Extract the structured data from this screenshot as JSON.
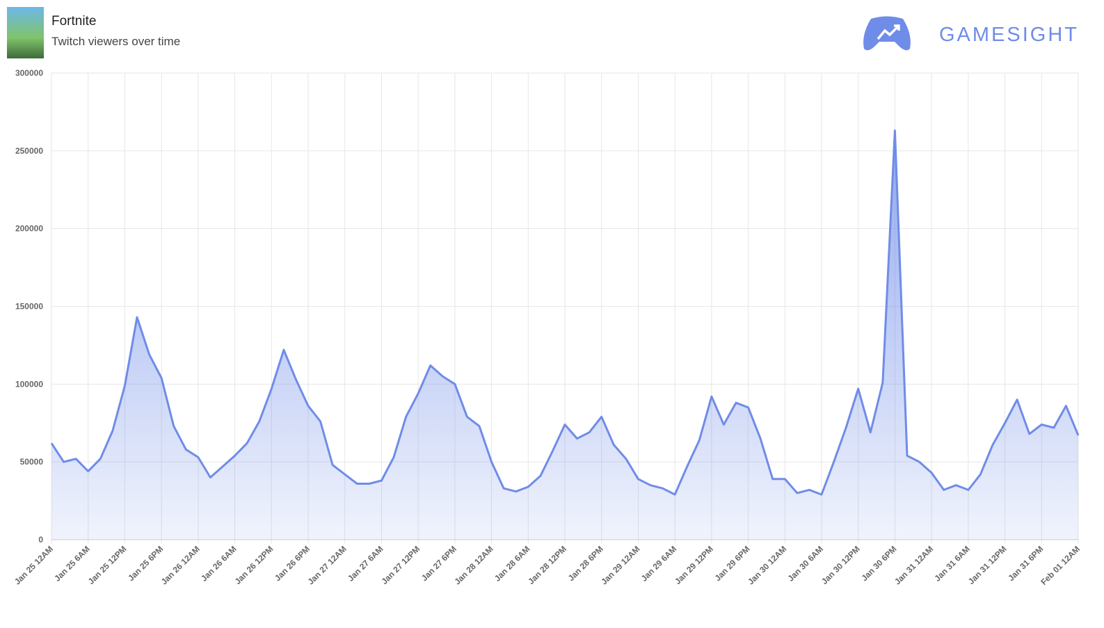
{
  "chart_data": {
    "type": "area",
    "title": "Fortnite",
    "subtitle": "Twitch viewers over time",
    "brand": "GAMESIGHT",
    "color": "#6f8ce8",
    "grid": true,
    "x": [
      "Jan 25 12AM",
      "Jan 25 2AM",
      "Jan 25 4AM",
      "Jan 25 6AM",
      "Jan 25 8AM",
      "Jan 25 10AM",
      "Jan 25 12PM",
      "Jan 25 2PM",
      "Jan 25 4PM",
      "Jan 25 6PM",
      "Jan 25 8PM",
      "Jan 25 10PM",
      "Jan 26 12AM",
      "Jan 26 2AM",
      "Jan 26 4AM",
      "Jan 26 6AM",
      "Jan 26 8AM",
      "Jan 26 10AM",
      "Jan 26 12PM",
      "Jan 26 2PM",
      "Jan 26 4PM",
      "Jan 26 6PM",
      "Jan 26 8PM",
      "Jan 26 10PM",
      "Jan 27 12AM",
      "Jan 27 2AM",
      "Jan 27 4AM",
      "Jan 27 6AM",
      "Jan 27 8AM",
      "Jan 27 10AM",
      "Jan 27 12PM",
      "Jan 27 2PM",
      "Jan 27 4PM",
      "Jan 27 6PM",
      "Jan 27 8PM",
      "Jan 27 10PM",
      "Jan 28 12AM",
      "Jan 28 2AM",
      "Jan 28 4AM",
      "Jan 28 6AM",
      "Jan 28 8AM",
      "Jan 28 10AM",
      "Jan 28 12PM",
      "Jan 28 2PM",
      "Jan 28 4PM",
      "Jan 28 6PM",
      "Jan 28 8PM",
      "Jan 28 10PM",
      "Jan 29 12AM",
      "Jan 29 2AM",
      "Jan 29 4AM",
      "Jan 29 6AM",
      "Jan 29 8AM",
      "Jan 29 10AM",
      "Jan 29 12PM",
      "Jan 29 2PM",
      "Jan 29 4PM",
      "Jan 29 6PM",
      "Jan 29 8PM",
      "Jan 29 10PM",
      "Jan 30 12AM",
      "Jan 30 2AM",
      "Jan 30 4AM",
      "Jan 30 6AM",
      "Jan 30 8AM",
      "Jan 30 10AM",
      "Jan 30 12PM",
      "Jan 30 2PM",
      "Jan 30 4PM",
      "Jan 30 6PM",
      "Jan 30 8PM",
      "Jan 30 10PM",
      "Jan 31 12AM",
      "Jan 31 2AM",
      "Jan 31 4AM",
      "Jan 31 6AM",
      "Jan 31 8AM",
      "Jan 31 10AM",
      "Jan 31 12PM",
      "Jan 31 2PM",
      "Jan 31 4PM",
      "Jan 31 6PM",
      "Jan 31 8PM",
      "Jan 31 10PM",
      "Feb 01 12AM"
    ],
    "values": [
      62000,
      50000,
      52000,
      44000,
      52000,
      70000,
      99000,
      143000,
      119000,
      104000,
      73000,
      58000,
      53000,
      40000,
      47000,
      54000,
      62000,
      76000,
      97000,
      122000,
      103000,
      86000,
      76000,
      48000,
      42000,
      36000,
      36000,
      38000,
      53000,
      79000,
      94000,
      112000,
      105000,
      100000,
      79000,
      73000,
      50000,
      33000,
      31000,
      34000,
      41000,
      57000,
      74000,
      65000,
      69000,
      79000,
      61000,
      52000,
      39000,
      35000,
      33000,
      29000,
      47000,
      64000,
      92000,
      74000,
      88000,
      85000,
      65000,
      39000,
      39000,
      30000,
      32000,
      29000,
      50000,
      72000,
      97000,
      69000,
      101000,
      263000,
      54000,
      50000,
      43000,
      32000,
      35000,
      32000,
      42000,
      61000,
      75000,
      90000,
      68000,
      74000,
      72000,
      86000,
      67000
    ],
    "xticks": [
      "Jan 25 12AM",
      "Jan 25 6AM",
      "Jan 25 12PM",
      "Jan 25 6PM",
      "Jan 26 12AM",
      "Jan 26 6AM",
      "Jan 26 12PM",
      "Jan 26 6PM",
      "Jan 27 12AM",
      "Jan 27 6AM",
      "Jan 27 12PM",
      "Jan 27 6PM",
      "Jan 28 12AM",
      "Jan 28 6AM",
      "Jan 28 12PM",
      "Jan 28 6PM",
      "Jan 29 12AM",
      "Jan 29 6AM",
      "Jan 29 12PM",
      "Jan 29 6PM",
      "Jan 30 12AM",
      "Jan 30 6AM",
      "Jan 30 12PM",
      "Jan 30 6PM",
      "Jan 31 12AM",
      "Jan 31 6AM",
      "Jan 31 12PM",
      "Jan 31 6PM",
      "Feb 01 12AM"
    ],
    "ylim": [
      0,
      300000
    ],
    "yticks": [
      0,
      50000,
      100000,
      150000,
      200000,
      250000,
      300000
    ]
  }
}
